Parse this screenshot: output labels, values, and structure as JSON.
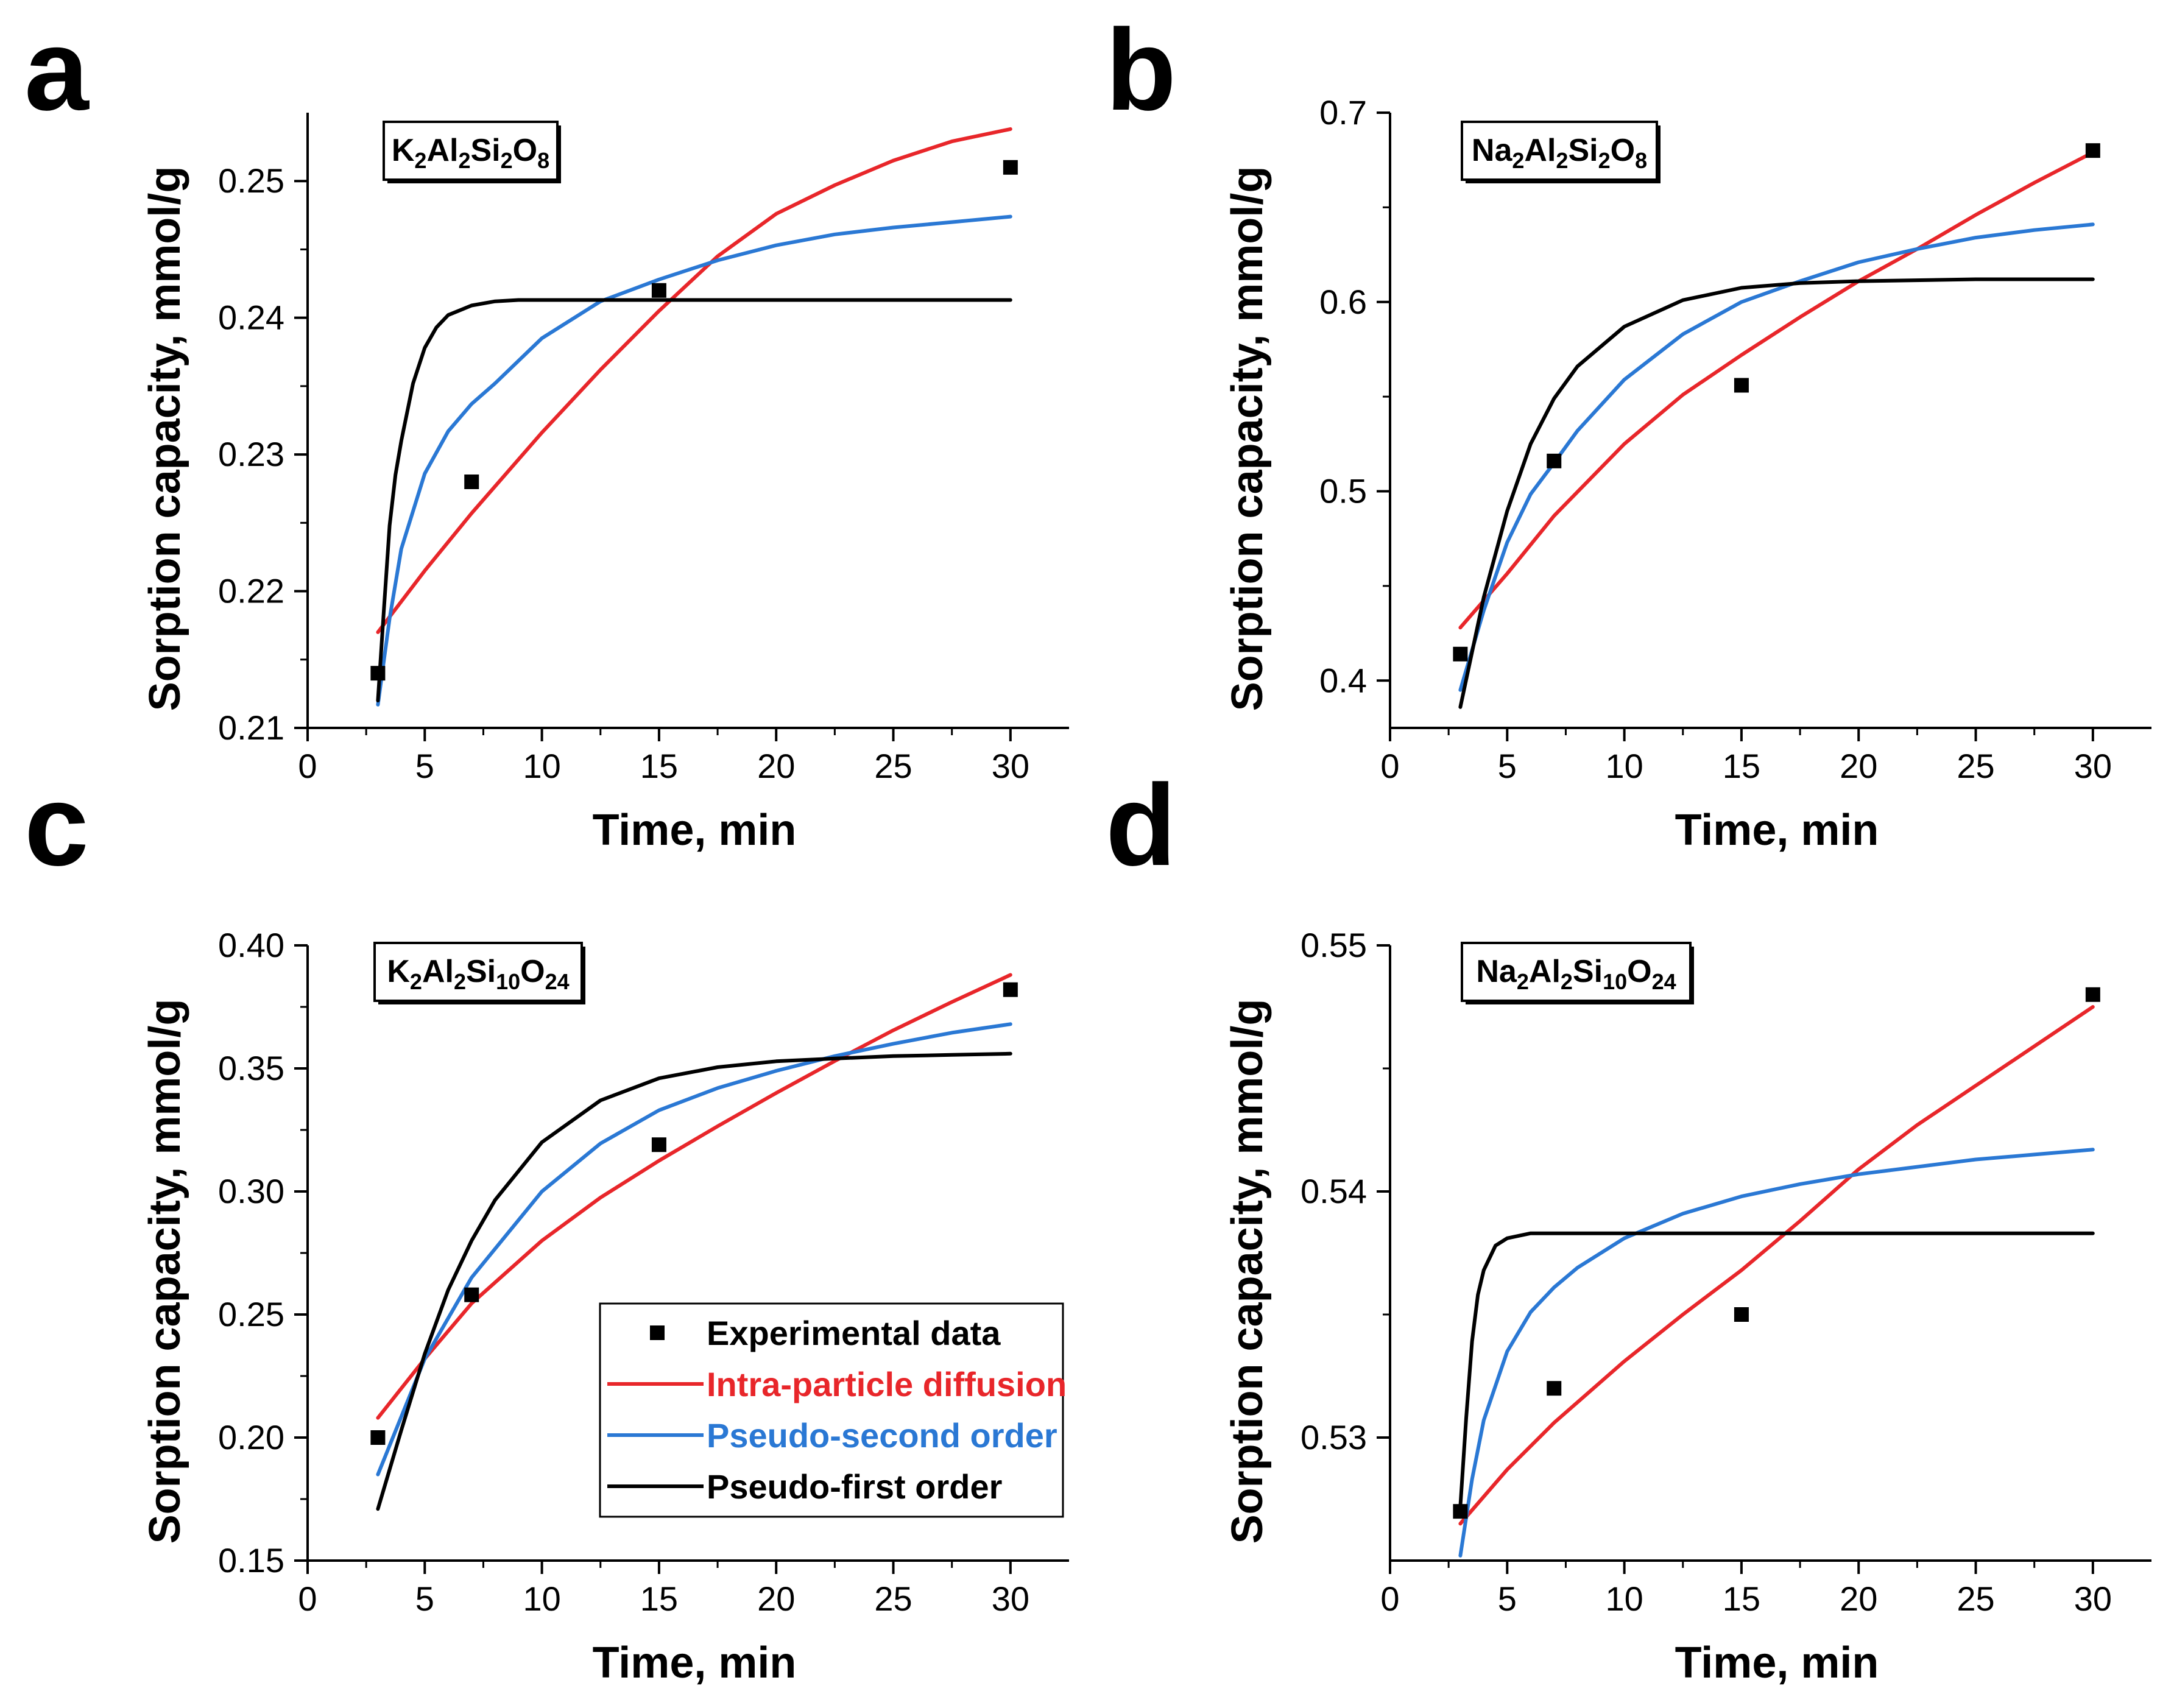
{
  "colors": {
    "experimental": "#000000",
    "intra_particle": "#e8262a",
    "pseudo_second": "#2a78d4",
    "pseudo_first": "#000000"
  },
  "legend": {
    "experimental": "Experimental data",
    "intra_particle": "Intra-particle diffusion",
    "pseudo_second": "Pseudo-second order",
    "pseudo_first": "Pseudo-first order"
  },
  "chart_data": [
    {
      "panel": "a",
      "type": "scatter",
      "sample_label": [
        [
          "K",
          ""
        ],
        [
          "2",
          "sub"
        ],
        [
          "Al",
          ""
        ],
        [
          "2",
          "sub"
        ],
        [
          "Si",
          ""
        ],
        [
          "2",
          "sub"
        ],
        [
          "O",
          ""
        ],
        [
          "8",
          "sub"
        ]
      ],
      "xlabel": "Time, min",
      "ylabel": "Sorption capacity, mmol/g",
      "xlim": [
        0,
        32.5
      ],
      "ylim": [
        0.21,
        0.255
      ],
      "xticks": [
        0,
        5,
        10,
        15,
        20,
        25,
        30
      ],
      "yticks": [
        0.21,
        0.22,
        0.23,
        0.24,
        0.25
      ],
      "ytick_labels": [
        "0.21",
        "0.22",
        "0.23",
        "0.24",
        "0.25"
      ],
      "experimental": {
        "x": [
          3,
          7,
          15,
          30
        ],
        "y": [
          0.214,
          0.228,
          0.242,
          0.251
        ]
      },
      "series": [
        {
          "name": "Intra-particle diffusion",
          "x": [
            3,
            5,
            7,
            10,
            12.5,
            15,
            17.5,
            20,
            22.5,
            25,
            27.5,
            30
          ],
          "y": [
            0.217,
            0.2215,
            0.2257,
            0.2316,
            0.2362,
            0.2405,
            0.2445,
            0.2476,
            0.2497,
            0.2515,
            0.2529,
            0.2538
          ]
        },
        {
          "name": "Pseudo-second order",
          "x": [
            3,
            3.5,
            4,
            5,
            6,
            7,
            8,
            10,
            12.5,
            15,
            17.5,
            20,
            22.5,
            25,
            27.5,
            30
          ],
          "y": [
            0.2117,
            0.218,
            0.2231,
            0.2286,
            0.2317,
            0.2337,
            0.2352,
            0.2385,
            0.2412,
            0.2428,
            0.2442,
            0.2453,
            0.2461,
            0.2466,
            0.247,
            0.2474
          ]
        },
        {
          "name": "Pseudo-first order",
          "x": [
            3,
            3.25,
            3.5,
            3.75,
            4,
            4.5,
            5,
            5.5,
            6,
            7,
            8,
            9,
            10,
            12,
            15,
            20,
            25,
            30
          ],
          "y": [
            0.212,
            0.2185,
            0.2248,
            0.2285,
            0.231,
            0.2352,
            0.2378,
            0.2393,
            0.2402,
            0.2409,
            0.2412,
            0.2413,
            0.2413,
            0.2413,
            0.2413,
            0.2413,
            0.2413,
            0.2413
          ]
        }
      ],
      "legend_visible": false
    },
    {
      "panel": "b",
      "type": "scatter",
      "sample_label": [
        [
          "Na",
          ""
        ],
        [
          "2",
          "sub"
        ],
        [
          "Al",
          ""
        ],
        [
          "2",
          "sub"
        ],
        [
          "Si",
          ""
        ],
        [
          "2",
          "sub"
        ],
        [
          "O",
          ""
        ],
        [
          "8",
          "sub"
        ]
      ],
      "xlabel": "Time, min",
      "ylabel": "Sorption capacity, mmol/g",
      "xlim": [
        0,
        32.5
      ],
      "ylim": [
        0.375,
        0.7
      ],
      "xticks": [
        0,
        5,
        10,
        15,
        20,
        25,
        30
      ],
      "yticks": [
        0.4,
        0.5,
        0.6,
        0.7
      ],
      "ytick_labels": [
        "0.4",
        "0.5",
        "0.6",
        "0.7"
      ],
      "experimental": {
        "x": [
          3,
          7,
          15,
          30
        ],
        "y": [
          0.414,
          0.516,
          0.556,
          0.68
        ]
      },
      "series": [
        {
          "name": "Intra-particle diffusion",
          "x": [
            3,
            5,
            7,
            10,
            12.5,
            15,
            17.5,
            20,
            22.5,
            25,
            27.5,
            30
          ],
          "y": [
            0.428,
            0.4565,
            0.487,
            0.525,
            0.551,
            0.572,
            0.592,
            0.611,
            0.628,
            0.646,
            0.663,
            0.679
          ]
        },
        {
          "name": "Pseudo-second order",
          "x": [
            3,
            4,
            5,
            6,
            7,
            8,
            10,
            12.5,
            15,
            17.5,
            20,
            22.5,
            25,
            27.5,
            30
          ],
          "y": [
            0.395,
            0.437,
            0.473,
            0.4985,
            0.515,
            0.532,
            0.559,
            0.583,
            0.6,
            0.611,
            0.621,
            0.628,
            0.634,
            0.638,
            0.641
          ]
        },
        {
          "name": "Pseudo-first order",
          "x": [
            3,
            4,
            5,
            6,
            7,
            8,
            10,
            12.5,
            15,
            17.5,
            20,
            25,
            30
          ],
          "y": [
            0.386,
            0.444,
            0.4896,
            0.525,
            0.549,
            0.566,
            0.587,
            0.601,
            0.6075,
            0.61,
            0.611,
            0.612,
            0.612
          ]
        }
      ],
      "legend_visible": false
    },
    {
      "panel": "c",
      "type": "scatter",
      "sample_label": [
        [
          "K",
          ""
        ],
        [
          "2",
          "sub"
        ],
        [
          "Al",
          ""
        ],
        [
          "2",
          "sub"
        ],
        [
          "Si",
          ""
        ],
        [
          "10",
          "sub"
        ],
        [
          "O",
          ""
        ],
        [
          "24",
          "sub"
        ]
      ],
      "xlabel": "Time, min",
      "ylabel": "Sorption capacity, mmol/g",
      "xlim": [
        0,
        32.5
      ],
      "ylim": [
        0.15,
        0.4
      ],
      "xticks": [
        0,
        5,
        10,
        15,
        20,
        25,
        30
      ],
      "yticks": [
        0.15,
        0.2,
        0.25,
        0.3,
        0.35,
        0.4
      ],
      "ytick_labels": [
        "0.15",
        "0.20",
        "0.25",
        "0.30",
        "0.35",
        "0.40"
      ],
      "experimental": {
        "x": [
          3,
          7,
          15,
          30
        ],
        "y": [
          0.2,
          0.258,
          0.319,
          0.382
        ]
      },
      "series": [
        {
          "name": "Intra-particle diffusion",
          "x": [
            3,
            5,
            7,
            10,
            12.5,
            15,
            17.5,
            20,
            22.5,
            25,
            27.5,
            30
          ],
          "y": [
            0.208,
            0.232,
            0.2545,
            0.28,
            0.2975,
            0.3125,
            0.3265,
            0.34,
            0.353,
            0.3655,
            0.377,
            0.388
          ]
        },
        {
          "name": "Pseudo-second order",
          "x": [
            3,
            5,
            7,
            10,
            12.5,
            15,
            17.5,
            20,
            22.5,
            25,
            27.5,
            30
          ],
          "y": [
            0.185,
            0.232,
            0.265,
            0.3,
            0.3195,
            0.333,
            0.342,
            0.349,
            0.355,
            0.36,
            0.3645,
            0.368
          ]
        },
        {
          "name": "Pseudo-first order",
          "x": [
            3,
            4,
            5,
            6,
            7,
            8,
            10,
            12.5,
            15,
            17.5,
            20,
            22.5,
            25,
            27.5,
            30
          ],
          "y": [
            0.171,
            0.203,
            0.234,
            0.26,
            0.28,
            0.2965,
            0.32,
            0.337,
            0.346,
            0.3505,
            0.3529,
            0.354,
            0.355,
            0.3555,
            0.356
          ]
        }
      ],
      "legend_visible": true
    },
    {
      "panel": "d",
      "type": "scatter",
      "sample_label": [
        [
          "Na",
          ""
        ],
        [
          "2",
          "sub"
        ],
        [
          "Al",
          ""
        ],
        [
          "2",
          "sub"
        ],
        [
          "Si",
          ""
        ],
        [
          "10",
          "sub"
        ],
        [
          "O",
          ""
        ],
        [
          "24",
          "sub"
        ]
      ],
      "xlabel": "Time, min",
      "ylabel": "Sorption capacity, mmol/g",
      "xlim": [
        0,
        32.5
      ],
      "ylim": [
        0.525,
        0.55
      ],
      "xticks": [
        0,
        5,
        10,
        15,
        20,
        25,
        30
      ],
      "yticks": [
        0.53,
        0.54,
        0.55
      ],
      "ytick_labels": [
        "0.53",
        "0.54",
        "0.55"
      ],
      "experimental": {
        "x": [
          3,
          7,
          15,
          30
        ],
        "y": [
          0.527,
          0.532,
          0.535,
          0.548
        ]
      },
      "series": [
        {
          "name": "Intra-particle diffusion",
          "x": [
            3,
            5,
            7,
            10,
            12.5,
            15,
            17.5,
            20,
            22.5,
            25,
            27.5,
            30
          ],
          "y": [
            0.5265,
            0.5287,
            0.5306,
            0.5331,
            0.535,
            0.5368,
            0.5388,
            0.5409,
            0.5427,
            0.5443,
            0.5459,
            0.5475
          ]
        },
        {
          "name": "Pseudo-second order",
          "x": [
            3,
            3.5,
            4,
            5,
            6,
            7,
            8,
            10,
            12.5,
            15,
            17.5,
            20,
            22.5,
            25,
            27.5,
            30
          ],
          "y": [
            0.5252,
            0.5283,
            0.5307,
            0.5335,
            0.5351,
            0.5361,
            0.5369,
            0.5381,
            0.5391,
            0.5398,
            0.5403,
            0.5407,
            0.541,
            0.5413,
            0.5415,
            0.5417
          ]
        },
        {
          "name": "Pseudo-first order",
          "x": [
            3,
            3.25,
            3.5,
            3.75,
            4,
            4.5,
            5,
            6,
            7,
            8,
            10,
            15,
            20,
            25,
            30
          ],
          "y": [
            0.5272,
            0.5308,
            0.5339,
            0.5358,
            0.5368,
            0.5378,
            0.5381,
            0.5383,
            0.5383,
            0.5383,
            0.5383,
            0.5383,
            0.5383,
            0.5383,
            0.5383
          ]
        }
      ],
      "legend_visible": false
    }
  ]
}
